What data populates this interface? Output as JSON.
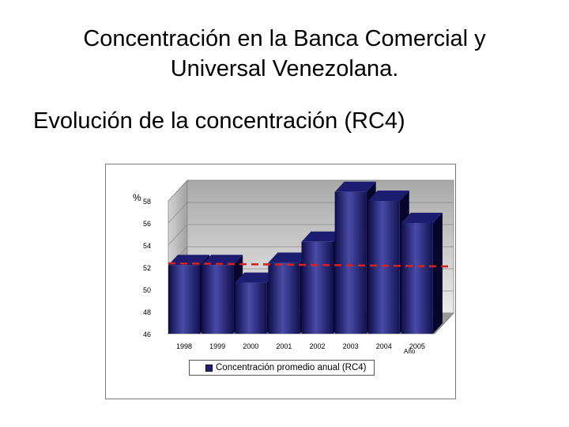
{
  "slide": {
    "title_line1": "Concentración en la Banca Comercial y",
    "title_line2": "Universal Venezolana.",
    "subtitle": "Evolución de la concentración (RC4)"
  },
  "chart_data": {
    "type": "bar",
    "categories": [
      "1998",
      "1999",
      "2000",
      "2001",
      "2002",
      "2003",
      "2004",
      "2005"
    ],
    "series": [
      {
        "name": "Concentración promedio anual (RC4)",
        "values": [
          52.2,
          52.2,
          50.6,
          52.4,
          54.3,
          58.8,
          58.0,
          56.0
        ]
      }
    ],
    "reference_line": {
      "value": 52.0,
      "style": "dashed",
      "color": "#d42020"
    },
    "ylabel": "%",
    "xlabel": "Año",
    "ylim": [
      46,
      58
    ],
    "yticks": [
      46,
      48,
      50,
      52,
      54,
      56,
      58
    ],
    "grid": true,
    "legend_position": "bottom",
    "colors": {
      "bar": "#2a2a8c",
      "reference": "#d42020"
    }
  }
}
